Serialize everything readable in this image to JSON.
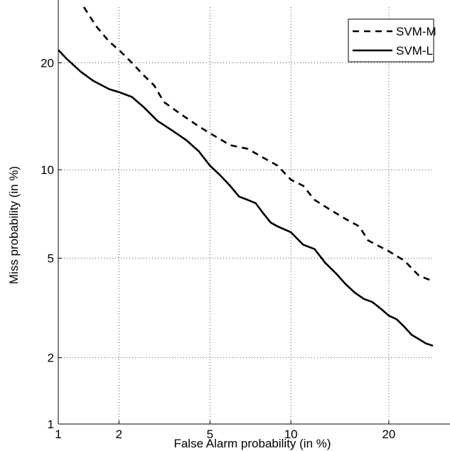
{
  "chart_data": {
    "type": "line",
    "title": "",
    "xlabel": "False Alarm probability (in %)",
    "ylabel": "Miss probability (in %)",
    "x_scale": "probit",
    "y_scale": "probit",
    "xlim": [
      1,
      26
    ],
    "ylim": [
      1,
      27
    ],
    "x_ticks": [
      1,
      2,
      5,
      10,
      20
    ],
    "x_tick_labels": [
      "1",
      "2",
      "5",
      "10",
      "20"
    ],
    "y_ticks": [
      1,
      2,
      5,
      10,
      20
    ],
    "y_tick_labels": [
      "1",
      "2",
      "5",
      "10",
      "20"
    ],
    "grid": true,
    "legend_position": "top-right",
    "series": [
      {
        "name": "SVM-M",
        "style": "dashed",
        "color": "#000000",
        "points": [
          [
            1.35,
            27.0
          ],
          [
            1.55,
            24.5
          ],
          [
            1.8,
            22.5
          ],
          [
            2.0,
            21.5
          ],
          [
            2.3,
            20.0
          ],
          [
            2.6,
            18.6
          ],
          [
            2.9,
            17.5
          ],
          [
            3.2,
            15.8
          ],
          [
            3.8,
            14.6
          ],
          [
            4.5,
            13.5
          ],
          [
            5.0,
            12.9
          ],
          [
            6.0,
            11.9
          ],
          [
            7.0,
            11.6
          ],
          [
            8.0,
            10.9
          ],
          [
            9.0,
            10.3
          ],
          [
            10.0,
            9.3
          ],
          [
            11.0,
            8.9
          ],
          [
            12.0,
            8.0
          ],
          [
            13.5,
            7.4
          ],
          [
            15.0,
            6.9
          ],
          [
            16.5,
            6.5
          ],
          [
            17.5,
            5.8
          ],
          [
            20.0,
            5.3
          ],
          [
            22.0,
            4.9
          ],
          [
            24.0,
            4.3
          ],
          [
            26.0,
            4.1
          ]
        ]
      },
      {
        "name": "SVM-L",
        "style": "solid",
        "color": "#000000",
        "points": [
          [
            1.0,
            21.5
          ],
          [
            1.1,
            20.5
          ],
          [
            1.3,
            19.0
          ],
          [
            1.5,
            18.0
          ],
          [
            1.8,
            17.1
          ],
          [
            2.0,
            16.8
          ],
          [
            2.3,
            16.3
          ],
          [
            2.6,
            15.3
          ],
          [
            3.0,
            14.0
          ],
          [
            3.5,
            13.1
          ],
          [
            4.0,
            12.3
          ],
          [
            4.5,
            11.4
          ],
          [
            5.0,
            10.3
          ],
          [
            5.5,
            9.6
          ],
          [
            6.0,
            8.9
          ],
          [
            6.5,
            8.2
          ],
          [
            7.0,
            8.0
          ],
          [
            7.5,
            7.8
          ],
          [
            8.0,
            7.2
          ],
          [
            8.5,
            6.7
          ],
          [
            9.0,
            6.5
          ],
          [
            10.0,
            6.2
          ],
          [
            11.0,
            5.6
          ],
          [
            12.0,
            5.4
          ],
          [
            13.0,
            4.8
          ],
          [
            14.0,
            4.4
          ],
          [
            15.0,
            4.0
          ],
          [
            16.0,
            3.7
          ],
          [
            17.0,
            3.5
          ],
          [
            18.0,
            3.4
          ],
          [
            19.0,
            3.2
          ],
          [
            20.0,
            3.0
          ],
          [
            21.0,
            2.9
          ],
          [
            22.0,
            2.7
          ],
          [
            23.0,
            2.5
          ],
          [
            24.0,
            2.4
          ],
          [
            25.0,
            2.3
          ],
          [
            26.0,
            2.25
          ]
        ]
      }
    ]
  }
}
